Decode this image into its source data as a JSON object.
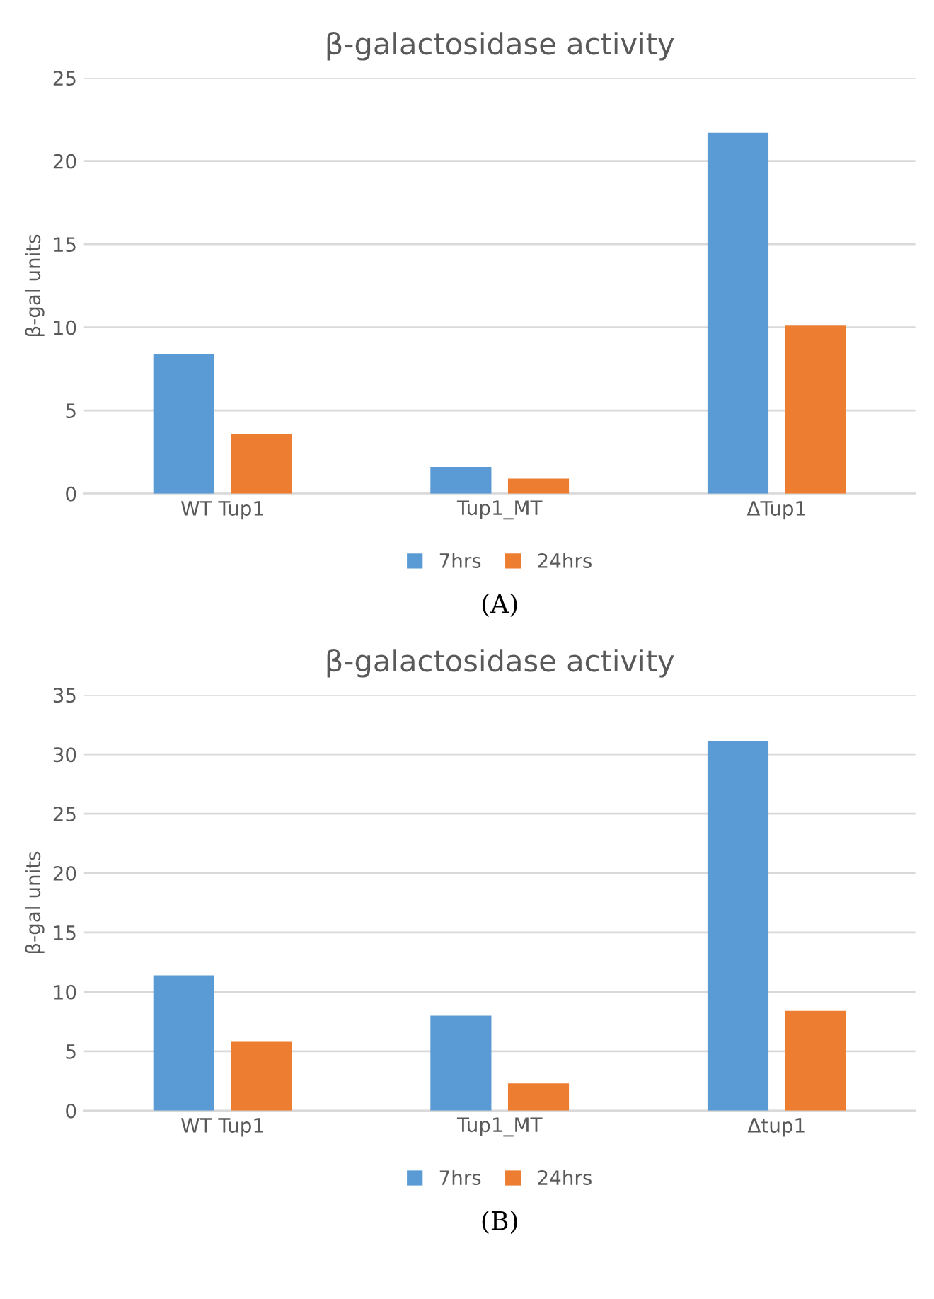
{
  "chart_data": [
    {
      "type": "bar",
      "title": "β-galactosidase activity",
      "ylabel": "β-gal units",
      "categories": [
        "WT Tup1",
        "Tup1_MT",
        "ΔTup1"
      ],
      "series": [
        {
          "name": "7hrs",
          "color": "#5b9bd5",
          "values": [
            8.4,
            1.6,
            21.7
          ]
        },
        {
          "name": "24hrs",
          "color": "#ed7d31",
          "values": [
            3.6,
            0.9,
            10.1
          ]
        }
      ],
      "ylim": [
        0,
        25
      ],
      "yticks": [
        0,
        5,
        10,
        15,
        20,
        25
      ],
      "grid": "y",
      "legend": "bottom",
      "annotations": [
        "(A)"
      ]
    },
    {
      "type": "bar",
      "title": "β-galactosidase activity",
      "ylabel": "β-gal units",
      "categories": [
        "WT Tup1",
        "Tup1_MT",
        "Δtup1"
      ],
      "series": [
        {
          "name": "7hrs",
          "color": "#5b9bd5",
          "values": [
            11.4,
            8.0,
            31.1
          ]
        },
        {
          "name": "24hrs",
          "color": "#ed7d31",
          "values": [
            5.8,
            2.3,
            8.4
          ]
        }
      ],
      "ylim": [
        0,
        35
      ],
      "yticks": [
        0,
        5,
        10,
        15,
        20,
        25,
        30,
        35
      ],
      "grid": "y",
      "legend": "bottom",
      "annotations": [
        "(B)"
      ]
    }
  ]
}
